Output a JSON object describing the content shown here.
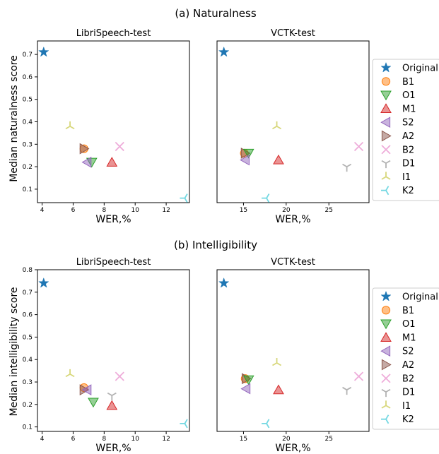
{
  "sections": [
    {
      "title": "(a) Naturalness",
      "ylabel": "Median naturalness score",
      "xlabel": "WER,%"
    },
    {
      "title": "(b) Intelligibility",
      "ylabel": "Median intelligibility score",
      "xlabel": "WER,%"
    }
  ],
  "legend": [
    {
      "key": "Original",
      "label": "Original",
      "color": "#1f77b4",
      "marker": "star"
    },
    {
      "key": "B1",
      "label": "B1",
      "color": "#ff7f0e",
      "marker": "circle"
    },
    {
      "key": "O1",
      "label": "O1",
      "color": "#2ca02c",
      "marker": "triangle-down"
    },
    {
      "key": "M1",
      "label": "M1",
      "color": "#d62728",
      "marker": "triangle-up"
    },
    {
      "key": "S2",
      "label": "S2",
      "color": "#9467bd",
      "marker": "triangle-left"
    },
    {
      "key": "A2",
      "label": "A2",
      "color": "#8c564b",
      "marker": "triangle-right"
    },
    {
      "key": "B2",
      "label": "B2",
      "color": "#e377c2",
      "marker": "x"
    },
    {
      "key": "D1",
      "label": "D1",
      "color": "#7f7f7f",
      "marker": "tri-down"
    },
    {
      "key": "I1",
      "label": "I1",
      "color": "#bcbd22",
      "marker": "tri-up"
    },
    {
      "key": "K2",
      "label": "K2",
      "color": "#17becf",
      "marker": "tri-left"
    }
  ],
  "chart_data": [
    {
      "type": "scatter",
      "title": "LibriSpeech-test",
      "xlabel": "WER,%",
      "ylabel": "Median naturalness score",
      "xlim": [
        3.7,
        13.5
      ],
      "ylim": [
        0.04,
        0.76
      ],
      "xticks": [
        4,
        6,
        8,
        10,
        12
      ],
      "yticks": [
        0.1,
        0.2,
        0.3,
        0.4,
        0.5,
        0.6,
        0.7
      ],
      "points": [
        {
          "series": "Original",
          "x": 4.1,
          "y": 0.71
        },
        {
          "series": "B1",
          "x": 6.7,
          "y": 0.28
        },
        {
          "series": "A2",
          "x": 6.7,
          "y": 0.28
        },
        {
          "series": "O1",
          "x": 7.2,
          "y": 0.22
        },
        {
          "series": "M1",
          "x": 8.5,
          "y": 0.22
        },
        {
          "series": "S2",
          "x": 6.9,
          "y": 0.22
        },
        {
          "series": "B2",
          "x": 9.0,
          "y": 0.29
        },
        {
          "series": "I1",
          "x": 5.8,
          "y": 0.38
        },
        {
          "series": "K2",
          "x": 13.2,
          "y": 0.06
        }
      ]
    },
    {
      "type": "scatter",
      "title": "VCTK-test",
      "xlabel": "WER,%",
      "ylabel": "",
      "xlim": [
        11.9,
        29.7
      ],
      "ylim": [
        0.04,
        0.76
      ],
      "xticks": [
        15,
        20,
        25
      ],
      "yticks": [],
      "points": [
        {
          "series": "Original",
          "x": 12.7,
          "y": 0.71
        },
        {
          "series": "B1",
          "x": 15.1,
          "y": 0.26
        },
        {
          "series": "A2",
          "x": 15.2,
          "y": 0.26
        },
        {
          "series": "O1",
          "x": 15.6,
          "y": 0.26
        },
        {
          "series": "S2",
          "x": 15.2,
          "y": 0.23
        },
        {
          "series": "M1",
          "x": 19.1,
          "y": 0.23
        },
        {
          "series": "B2",
          "x": 28.5,
          "y": 0.29
        },
        {
          "series": "D1",
          "x": 27.1,
          "y": 0.2
        },
        {
          "series": "I1",
          "x": 18.9,
          "y": 0.38
        },
        {
          "series": "K2",
          "x": 17.7,
          "y": 0.06
        }
      ]
    },
    {
      "type": "scatter",
      "title": "LibriSpeech-test",
      "xlabel": "WER,%",
      "ylabel": "Median intelligibility score",
      "xlim": [
        3.7,
        13.5
      ],
      "ylim": [
        0.08,
        0.8
      ],
      "xticks": [
        4,
        6,
        8,
        10,
        12
      ],
      "yticks": [
        0.1,
        0.2,
        0.3,
        0.4,
        0.5,
        0.6,
        0.7,
        0.8
      ],
      "points": [
        {
          "series": "Original",
          "x": 4.1,
          "y": 0.74
        },
        {
          "series": "B1",
          "x": 6.7,
          "y": 0.275
        },
        {
          "series": "A2",
          "x": 6.7,
          "y": 0.265
        },
        {
          "series": "S2",
          "x": 6.9,
          "y": 0.265
        },
        {
          "series": "O1",
          "x": 7.3,
          "y": 0.21
        },
        {
          "series": "M1",
          "x": 8.5,
          "y": 0.195
        },
        {
          "series": "D1",
          "x": 8.5,
          "y": 0.24
        },
        {
          "series": "B2",
          "x": 9.0,
          "y": 0.325
        },
        {
          "series": "I1",
          "x": 5.8,
          "y": 0.335
        },
        {
          "series": "K2",
          "x": 13.2,
          "y": 0.115
        }
      ]
    },
    {
      "type": "scatter",
      "title": "VCTK-test",
      "xlabel": "WER,%",
      "ylabel": "",
      "xlim": [
        11.9,
        29.7
      ],
      "ylim": [
        0.08,
        0.8
      ],
      "xticks": [
        15,
        20,
        25
      ],
      "yticks": [],
      "points": [
        {
          "series": "Original",
          "x": 12.7,
          "y": 0.74
        },
        {
          "series": "B1",
          "x": 15.2,
          "y": 0.315
        },
        {
          "series": "A2",
          "x": 15.3,
          "y": 0.315
        },
        {
          "series": "O1",
          "x": 15.6,
          "y": 0.31
        },
        {
          "series": "S2",
          "x": 15.3,
          "y": 0.27
        },
        {
          "series": "M1",
          "x": 19.1,
          "y": 0.265
        },
        {
          "series": "B2",
          "x": 28.5,
          "y": 0.325
        },
        {
          "series": "D1",
          "x": 27.1,
          "y": 0.265
        },
        {
          "series": "I1",
          "x": 18.9,
          "y": 0.385
        },
        {
          "series": "K2",
          "x": 17.7,
          "y": 0.115
        }
      ]
    }
  ]
}
